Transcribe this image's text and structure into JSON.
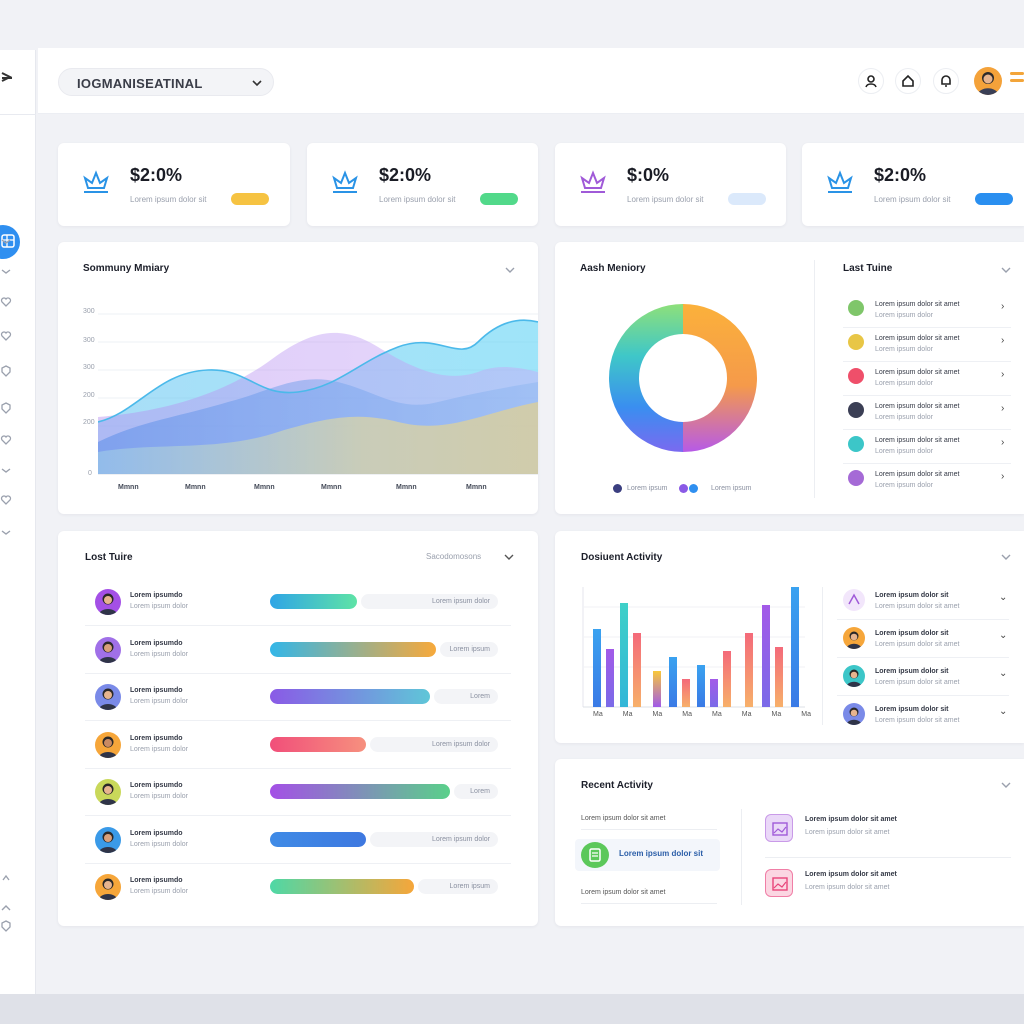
{
  "search": {
    "value": "IOGMANISEATINAL"
  },
  "stats": [
    {
      "value": "$2:0%",
      "sub": "Lorem ipsum dolor sit",
      "badge_color": "#f6c342",
      "icon_color": "#2a93e6"
    },
    {
      "value": "$2:0%",
      "sub": "Lorem ipsum dolor sit",
      "badge_color": "#52d98a",
      "icon_color": "#2a93e6"
    },
    {
      "value": "$:0%",
      "sub": "Lorem ipsum dolor sit",
      "badge_color": "#dbe9fb",
      "icon_color": "#a05ad8"
    },
    {
      "value": "$2:0%",
      "sub": "Lorem ipsum dolor sit",
      "badge_color": "#2a8ff0",
      "icon_color": "#2a93e6"
    }
  ],
  "summary": {
    "title": "Sommuny Mmiary",
    "y_ticks": [
      "300",
      "300",
      "300",
      "200",
      "200",
      "0"
    ],
    "x_ticks": [
      "Mmnn",
      "Mmnn",
      "Mmnn",
      "Mmnn",
      "Mmnn",
      "Mmnn"
    ]
  },
  "donut": {
    "title": "Aash Meniory",
    "legend": [
      "Lorem ipsum",
      "Lorem ipsum"
    ]
  },
  "last_tune": {
    "title": "Last Tuine",
    "items": [
      {
        "line1": "Lorem ipsum dolor sit amet",
        "line2": "Lorem ipsum dolor",
        "dot": "#7fc66a"
      },
      {
        "line1": "Lorem ipsum dolor sit amet",
        "line2": "Lorem ipsum dolor",
        "dot": "#e8c646"
      },
      {
        "line1": "Lorem ipsum dolor sit amet",
        "line2": "Lorem ipsum dolor",
        "dot": "#ef4f6a"
      },
      {
        "line1": "Lorem ipsum dolor sit amet",
        "line2": "Lorem ipsum dolor",
        "dot": "#3b3f55"
      },
      {
        "line1": "Lorem ipsum dolor sit amet",
        "line2": "Lorem ipsum dolor",
        "dot": "#3cc6c8"
      },
      {
        "line1": "Lorem ipsum dolor sit amet",
        "line2": "Lorem ipsum dolor",
        "dot": "#a56ad6"
      }
    ]
  },
  "lost_tune": {
    "title": "Lost Tuire",
    "filter": "Sacodomosons",
    "rows": [
      {
        "name": "Lorem ipsumdo",
        "sub": "Lorem ipsum dolor",
        "pill": "Lorem ipsum dolor",
        "bar_from": "#2fa5e6",
        "bar_to": "#5ee3a6",
        "fill": 0.38
      },
      {
        "name": "Lorem ipsumdo",
        "sub": "Lorem ipsum dolor",
        "pill": "Lorem ipsum",
        "bar_from": "#33b6e8",
        "bar_to": "#f7a93b",
        "fill": 0.73
      },
      {
        "name": "Lorem ipsumdo",
        "sub": "Lorem ipsum dolor",
        "pill": "Lorem",
        "bar_from": "#8a5ae6",
        "bar_to": "#5fc6d8",
        "fill": 0.7
      },
      {
        "name": "Lorem ipsumdo",
        "sub": "Lorem ipsum dolor",
        "pill": "Lorem ipsum dolor",
        "bar_from": "#f14f7a",
        "bar_to": "#f6907e",
        "fill": 0.42
      },
      {
        "name": "Lorem ipsumdo",
        "sub": "Lorem ipsum dolor",
        "pill": "Lorem",
        "bar_from": "#a450e6",
        "bar_to": "#5ad08a",
        "fill": 0.79
      },
      {
        "name": "Lorem ipsumdo",
        "sub": "Lorem ipsum dolor",
        "pill": "Lorem ipsum dolor",
        "bar_from": "#3f8be6",
        "bar_to": "#3e78e0",
        "fill": 0.42
      },
      {
        "name": "Lorem ipsumdo",
        "sub": "Lorem ipsum dolor",
        "pill": "Lorem ipsum",
        "bar_from": "#4ed8a6",
        "bar_to": "#f6a63a",
        "fill": 0.63
      }
    ]
  },
  "document_activity": {
    "title": "Dosiuent Activity",
    "x_ticks": [
      "Ma",
      "Ma",
      "Ma",
      "Ma",
      "Ma",
      "Ma",
      "Ma",
      "Ma"
    ],
    "items": [
      {
        "line1": "Lorem ipsum dolor sit",
        "line2": "Lorem ipsum dolor sit amet"
      },
      {
        "line1": "Lorem ipsum dolor sit",
        "line2": "Lorem ipsum dolor sit amet"
      },
      {
        "line1": "Lorem ipsum dolor sit",
        "line2": "Lorem ipsum dolor sit amet"
      },
      {
        "line1": "Lorem ipsum dolor sit",
        "line2": "Lorem ipsum dolor sit amet"
      }
    ]
  },
  "recent_activity": {
    "title": "Recent Activity",
    "left_top": "Lorem ipsum dolor sit amet",
    "highlight": "Lorem ipsum dolor sit",
    "left_bottom": "Lorem ipsum dolor sit amet",
    "items": [
      {
        "line1": "Lorem ipsum dolor sit amet",
        "line2": "Lorem ipsum dolor sit amet"
      },
      {
        "line1": "Lorem ipsum dolor sit amet",
        "line2": "Lorem ipsum dolor sit amet"
      }
    ]
  }
}
